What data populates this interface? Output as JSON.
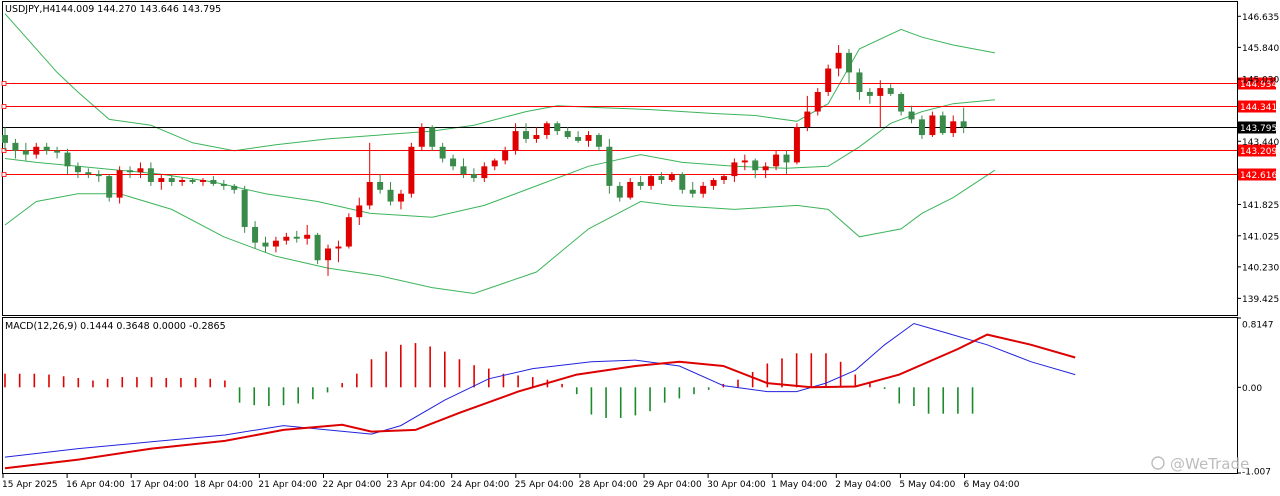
{
  "header": {
    "symbol": "USDJPY,H4",
    "ohlc": "144.009 144.270 143.646 143.795"
  },
  "macd_header": {
    "label": "MACD(12,26,9) 0.1444 0.3648 0.0000 -0.2865"
  },
  "watermark": {
    "text": "@WeTrade"
  },
  "chart_data": [
    {
      "type": "candlestick",
      "name": "USDJPY,H4",
      "ylim": [
        139.0,
        147.0
      ],
      "y_ticks": [
        "146.635",
        "145.840",
        "145.030",
        "143.440",
        "141.825",
        "141.025",
        "140.230",
        "139.425"
      ],
      "x_labels": [
        "15 Apr 2025",
        "16 Apr 04:00",
        "17 Apr 04:00",
        "18 Apr 04:00",
        "21 Apr 04:00",
        "22 Apr 04:00",
        "23 Apr 04:00",
        "24 Apr 04:00",
        "25 Apr 04:00",
        "28 Apr 04:00",
        "29 Apr 04:00",
        "30 Apr 04:00",
        "1 May 04:00",
        "2 May 04:00",
        "5 May 04:00",
        "6 May 04:00"
      ],
      "levels": [
        {
          "label": "144.934",
          "value": 144.934,
          "color": "#ff0000"
        },
        {
          "label": "144.341",
          "value": 144.341,
          "color": "#ff0000"
        },
        {
          "label": "143.795",
          "value": 143.795,
          "color": "#000000"
        },
        {
          "label": "143.209",
          "value": 143.209,
          "color": "#ff0000"
        },
        {
          "label": "142.616",
          "value": 142.616,
          "color": "#ff0000"
        }
      ],
      "colors": {
        "up": "#e00000",
        "down": "#3a8a4a",
        "band": "#3cb45a"
      },
      "candles": [
        [
          143.6,
          143.8,
          143.2,
          143.4
        ],
        [
          143.4,
          143.5,
          143.0,
          143.2
        ],
        [
          143.2,
          143.4,
          142.95,
          143.1
        ],
        [
          143.1,
          143.4,
          143.0,
          143.3
        ],
        [
          143.3,
          143.4,
          143.1,
          143.2
        ],
        [
          143.2,
          143.3,
          143.0,
          143.15
        ],
        [
          143.15,
          143.25,
          142.6,
          142.8
        ],
        [
          142.8,
          142.9,
          142.5,
          142.65
        ],
        [
          142.65,
          142.75,
          142.5,
          142.6
        ],
        [
          142.6,
          142.7,
          142.4,
          142.55
        ],
        [
          142.55,
          142.6,
          141.9,
          142.0
        ],
        [
          142.0,
          142.8,
          141.85,
          142.7
        ],
        [
          142.7,
          142.8,
          142.5,
          142.65
        ],
        [
          142.65,
          142.9,
          142.5,
          142.75
        ],
        [
          142.75,
          142.9,
          142.3,
          142.4
        ],
        [
          142.4,
          142.6,
          142.2,
          142.5
        ],
        [
          142.5,
          142.6,
          142.3,
          142.4
        ],
        [
          142.4,
          142.5,
          142.3,
          142.45
        ],
        [
          142.45,
          142.5,
          142.35,
          142.4
        ],
        [
          142.4,
          142.5,
          142.3,
          142.45
        ],
        [
          142.45,
          142.55,
          142.3,
          142.35
        ],
        [
          142.35,
          142.45,
          142.2,
          142.3
        ],
        [
          142.3,
          142.35,
          142.1,
          142.2
        ],
        [
          142.2,
          142.3,
          141.1,
          141.25
        ],
        [
          141.25,
          141.4,
          140.7,
          140.85
        ],
        [
          140.85,
          141.0,
          140.6,
          140.75
        ],
        [
          140.75,
          141.0,
          140.6,
          140.9
        ],
        [
          140.9,
          141.1,
          140.8,
          141.0
        ],
        [
          141.0,
          141.15,
          140.85,
          140.95
        ],
        [
          140.95,
          141.3,
          140.8,
          141.05
        ],
        [
          141.05,
          141.1,
          140.3,
          140.4
        ],
        [
          140.4,
          140.8,
          140.0,
          140.7
        ],
        [
          140.7,
          140.9,
          140.35,
          140.75
        ],
        [
          140.75,
          141.6,
          140.7,
          141.5
        ],
        [
          141.5,
          142.0,
          141.3,
          141.8
        ],
        [
          141.8,
          143.4,
          141.7,
          142.4
        ],
        [
          142.4,
          142.6,
          142.1,
          142.2
        ],
        [
          142.2,
          142.4,
          141.8,
          141.9
        ],
        [
          141.9,
          142.2,
          141.7,
          142.1
        ],
        [
          142.1,
          143.4,
          142.0,
          143.3
        ],
        [
          143.3,
          143.9,
          143.2,
          143.8
        ],
        [
          143.8,
          143.85,
          143.2,
          143.3
        ],
        [
          143.3,
          143.4,
          142.9,
          143.0
        ],
        [
          143.0,
          143.1,
          142.7,
          142.8
        ],
        [
          142.8,
          143.0,
          142.5,
          142.6
        ],
        [
          142.6,
          142.75,
          142.4,
          142.5
        ],
        [
          142.5,
          142.9,
          142.4,
          142.8
        ],
        [
          142.8,
          143.0,
          142.7,
          142.95
        ],
        [
          142.95,
          143.3,
          142.85,
          143.2
        ],
        [
          143.2,
          143.9,
          143.1,
          143.7
        ],
        [
          143.7,
          143.9,
          143.4,
          143.5
        ],
        [
          143.5,
          143.8,
          143.4,
          143.6
        ],
        [
          143.6,
          143.95,
          143.5,
          143.9
        ],
        [
          143.9,
          143.95,
          143.6,
          143.7
        ],
        [
          143.7,
          143.8,
          143.5,
          143.55
        ],
        [
          143.55,
          143.7,
          143.4,
          143.45
        ],
        [
          143.45,
          143.7,
          143.3,
          143.6
        ],
        [
          143.6,
          143.65,
          143.2,
          143.3
        ],
        [
          143.3,
          143.5,
          142.1,
          142.3
        ],
        [
          142.3,
          142.4,
          141.9,
          142.0
        ],
        [
          142.0,
          142.5,
          141.95,
          142.4
        ],
        [
          142.4,
          142.55,
          142.2,
          142.3
        ],
        [
          142.3,
          142.6,
          142.2,
          142.55
        ],
        [
          142.55,
          142.65,
          142.35,
          142.45
        ],
        [
          142.45,
          142.65,
          142.4,
          142.6
        ],
        [
          142.6,
          142.65,
          142.1,
          142.2
        ],
        [
          142.2,
          142.4,
          142.0,
          142.1
        ],
        [
          142.1,
          142.4,
          142.0,
          142.3
        ],
        [
          142.3,
          142.5,
          142.2,
          142.45
        ],
        [
          142.45,
          142.6,
          142.35,
          142.55
        ],
        [
          142.55,
          143.0,
          142.4,
          142.9
        ],
        [
          142.9,
          143.1,
          142.7,
          142.95
        ],
        [
          142.95,
          143.0,
          142.5,
          142.7
        ],
        [
          142.7,
          142.9,
          142.5,
          142.8
        ],
        [
          142.8,
          143.2,
          142.7,
          143.1
        ],
        [
          143.1,
          143.2,
          142.6,
          142.9
        ],
        [
          142.9,
          143.9,
          142.85,
          143.8
        ],
        [
          143.8,
          144.6,
          143.7,
          144.2
        ],
        [
          144.2,
          144.8,
          144.1,
          144.7
        ],
        [
          144.7,
          145.4,
          144.6,
          145.3
        ],
        [
          145.3,
          145.9,
          145.1,
          145.7
        ],
        [
          145.7,
          145.8,
          144.9,
          145.2
        ],
        [
          145.2,
          145.3,
          144.5,
          144.7
        ],
        [
          144.7,
          144.8,
          144.4,
          144.6
        ],
        [
          144.6,
          145.0,
          143.8,
          144.8
        ],
        [
          144.8,
          144.9,
          144.6,
          144.65
        ],
        [
          144.65,
          144.7,
          144.1,
          144.2
        ],
        [
          144.2,
          144.35,
          143.9,
          144.0
        ],
        [
          144.0,
          144.1,
          143.5,
          143.6
        ],
        [
          143.6,
          144.2,
          143.55,
          144.1
        ],
        [
          144.1,
          144.2,
          143.6,
          143.65
        ],
        [
          143.65,
          144.1,
          143.55,
          143.95
        ],
        [
          143.95,
          144.3,
          143.65,
          143.8
        ]
      ],
      "bb_upper": [
        [
          0,
          146.7
        ],
        [
          3,
          145.8
        ],
        [
          5,
          145.2
        ],
        [
          7,
          144.7
        ],
        [
          10,
          144.0
        ],
        [
          14,
          143.85
        ],
        [
          18,
          143.4
        ],
        [
          22,
          143.2
        ],
        [
          26,
          143.35
        ],
        [
          31,
          143.5
        ],
        [
          36,
          143.6
        ],
        [
          41,
          143.7
        ],
        [
          45,
          143.85
        ],
        [
          50,
          144.2
        ],
        [
          53,
          144.35
        ],
        [
          57,
          144.3
        ],
        [
          62,
          144.25
        ],
        [
          68,
          144.15
        ],
        [
          72,
          144.1
        ],
        [
          76,
          143.95
        ],
        [
          79,
          144.4
        ],
        [
          82,
          145.8
        ],
        [
          86,
          146.3
        ],
        [
          88,
          146.1
        ],
        [
          91,
          145.9
        ],
        [
          95,
          145.7
        ]
      ],
      "bb_middle": [
        [
          0,
          143.0
        ],
        [
          3,
          142.9
        ],
        [
          7,
          142.8
        ],
        [
          11,
          142.7
        ],
        [
          15,
          142.6
        ],
        [
          20,
          142.4
        ],
        [
          25,
          142.1
        ],
        [
          30,
          141.9
        ],
        [
          35,
          141.6
        ],
        [
          41,
          141.5
        ],
        [
          46,
          141.8
        ],
        [
          51,
          142.3
        ],
        [
          56,
          142.8
        ],
        [
          61,
          143.1
        ],
        [
          65,
          142.9
        ],
        [
          70,
          142.8
        ],
        [
          75,
          142.75
        ],
        [
          79,
          142.8
        ],
        [
          82,
          143.3
        ],
        [
          85,
          143.9
        ],
        [
          88,
          144.2
        ],
        [
          91,
          144.4
        ],
        [
          95,
          144.5
        ]
      ],
      "bb_lower": [
        [
          0,
          141.3
        ],
        [
          3,
          141.9
        ],
        [
          7,
          142.1
        ],
        [
          11,
          142.1
        ],
        [
          16,
          141.7
        ],
        [
          21,
          141.0
        ],
        [
          26,
          140.5
        ],
        [
          31,
          140.2
        ],
        [
          36,
          140.0
        ],
        [
          41,
          139.7
        ],
        [
          45,
          139.55
        ],
        [
          51,
          140.1
        ],
        [
          56,
          141.2
        ],
        [
          61,
          141.9
        ],
        [
          64,
          141.8
        ],
        [
          70,
          141.7
        ],
        [
          76,
          141.8
        ],
        [
          79,
          141.7
        ],
        [
          82,
          141.0
        ],
        [
          86,
          141.2
        ],
        [
          88,
          141.6
        ],
        [
          91,
          142.0
        ],
        [
          95,
          142.7
        ]
      ]
    },
    {
      "type": "macd",
      "name": "MACD(12,26,9)",
      "ylim": [
        -1.007,
        0.8147
      ],
      "y_ticks": [
        "0.8147",
        "0.00",
        "-1.007"
      ],
      "colors": {
        "hist_pos": "#e00000",
        "hist_neg": "#1a8a2a",
        "macd": "#2222dd",
        "signal": "#dd0000"
      },
      "histogram": [
        [
          0,
          0.16
        ],
        [
          2,
          0.16
        ],
        [
          4,
          0.16
        ],
        [
          6,
          0.15
        ],
        [
          8,
          0.13
        ],
        [
          10,
          0.11
        ],
        [
          12,
          0.08
        ],
        [
          14,
          0.1
        ],
        [
          16,
          0.12
        ],
        [
          18,
          0.12
        ],
        [
          20,
          0.12
        ],
        [
          22,
          0.11
        ],
        [
          24,
          0.11
        ],
        [
          26,
          0.11
        ],
        [
          28,
          0.1
        ],
        [
          30,
          0.08
        ],
        [
          32,
          -0.18
        ],
        [
          34,
          -0.21
        ],
        [
          36,
          -0.22
        ],
        [
          38,
          -0.21
        ],
        [
          40,
          -0.19
        ],
        [
          42,
          -0.14
        ],
        [
          44,
          -0.06
        ],
        [
          46,
          0.05
        ],
        [
          48,
          0.16
        ],
        [
          50,
          0.33
        ],
        [
          52,
          0.42
        ],
        [
          54,
          0.5
        ],
        [
          56,
          0.52
        ],
        [
          58,
          0.48
        ],
        [
          60,
          0.42
        ],
        [
          62,
          0.33
        ],
        [
          64,
          0.26
        ],
        [
          66,
          0.22
        ],
        [
          68,
          0.16
        ],
        [
          70,
          0.14
        ],
        [
          72,
          0.12
        ],
        [
          74,
          0.09
        ],
        [
          76,
          0.04
        ],
        [
          78,
          -0.08
        ],
        [
          80,
          -0.32
        ],
        [
          82,
          -0.36
        ],
        [
          84,
          -0.36
        ],
        [
          86,
          -0.33
        ],
        [
          88,
          -0.28
        ],
        [
          90,
          -0.18
        ],
        [
          92,
          -0.13
        ],
        [
          94,
          -0.08
        ],
        [
          96,
          -0.03
        ],
        [
          98,
          0.04
        ],
        [
          100,
          0.09
        ],
        [
          102,
          0.18
        ],
        [
          104,
          0.28
        ],
        [
          106,
          0.34
        ],
        [
          108,
          0.4
        ],
        [
          110,
          0.4
        ],
        [
          112,
          0.4
        ],
        [
          114,
          0.3
        ],
        [
          116,
          0.15
        ],
        [
          118,
          0.05
        ],
        [
          120,
          -0.02
        ],
        [
          122,
          -0.19
        ],
        [
          124,
          -0.22
        ],
        [
          126,
          -0.31
        ],
        [
          128,
          -0.31
        ],
        [
          130,
          -0.31
        ],
        [
          132,
          -0.31
        ]
      ],
      "macd_line": [
        [
          0,
          -0.82
        ],
        [
          10,
          -0.72
        ],
        [
          20,
          -0.64
        ],
        [
          30,
          -0.56
        ],
        [
          38,
          -0.45
        ],
        [
          44,
          -0.5
        ],
        [
          50,
          -0.55
        ],
        [
          54,
          -0.45
        ],
        [
          60,
          -0.15
        ],
        [
          66,
          0.1
        ],
        [
          72,
          0.22
        ],
        [
          80,
          0.3
        ],
        [
          86,
          0.32
        ],
        [
          92,
          0.25
        ],
        [
          98,
          0.02
        ],
        [
          104,
          -0.05
        ],
        [
          108,
          -0.05
        ],
        [
          112,
          0.05
        ],
        [
          116,
          0.2
        ],
        [
          120,
          0.5
        ],
        [
          124,
          0.75
        ],
        [
          128,
          0.65
        ],
        [
          134,
          0.5
        ],
        [
          140,
          0.3
        ],
        [
          146,
          0.15
        ]
      ],
      "signal_line": [
        [
          0,
          -0.95
        ],
        [
          10,
          -0.85
        ],
        [
          20,
          -0.72
        ],
        [
          30,
          -0.63
        ],
        [
          38,
          -0.5
        ],
        [
          46,
          -0.44
        ],
        [
          50,
          -0.52
        ],
        [
          56,
          -0.5
        ],
        [
          62,
          -0.3
        ],
        [
          70,
          -0.05
        ],
        [
          78,
          0.15
        ],
        [
          86,
          0.25
        ],
        [
          92,
          0.3
        ],
        [
          98,
          0.25
        ],
        [
          104,
          0.05
        ],
        [
          110,
          0.0
        ],
        [
          116,
          0.01
        ],
        [
          122,
          0.15
        ],
        [
          130,
          0.45
        ],
        [
          134,
          0.62
        ],
        [
          140,
          0.5
        ],
        [
          146,
          0.35
        ]
      ]
    }
  ]
}
